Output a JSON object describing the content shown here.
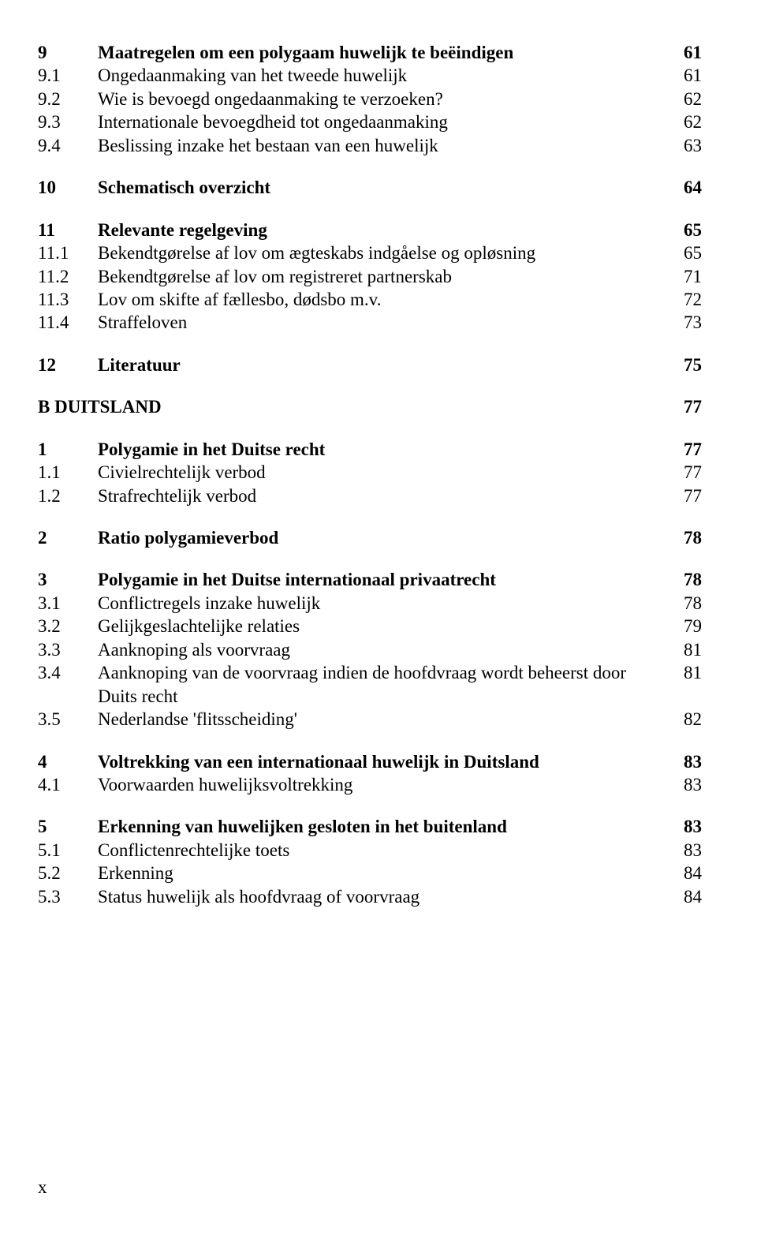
{
  "toc": {
    "items": [
      {
        "num": "9",
        "title": "Maatregelen om een polygaam huwelijk te beëindigen",
        "page": "61",
        "bold": true,
        "spaceBefore": 0
      },
      {
        "num": "9.1",
        "title": "Ongedaanmaking van het tweede huwelijk",
        "page": "61",
        "bold": false,
        "spaceBefore": 0
      },
      {
        "num": "9.2",
        "title": "Wie is bevoegd ongedaanmaking te verzoeken?",
        "page": "62",
        "bold": false,
        "spaceBefore": 0
      },
      {
        "num": "9.3",
        "title": "Internationale bevoegdheid tot ongedaanmaking",
        "page": "62",
        "bold": false,
        "spaceBefore": 0
      },
      {
        "num": "9.4",
        "title": "Beslissing inzake het bestaan van een huwelijk",
        "page": "63",
        "bold": false,
        "spaceBefore": 0
      },
      {
        "num": "10",
        "title": "Schematisch overzicht",
        "page": "64",
        "bold": true,
        "spaceBefore": 24
      },
      {
        "num": "11",
        "title": "Relevante regelgeving",
        "page": "65",
        "bold": true,
        "spaceBefore": 24
      },
      {
        "num": "11.1",
        "title": "Bekendtgørelse af lov om ægteskabs indgåelse og opløsning",
        "page": "65",
        "bold": false,
        "spaceBefore": 0
      },
      {
        "num": "11.2",
        "title": "Bekendtgørelse af lov om registreret partnerskab",
        "page": "71",
        "bold": false,
        "spaceBefore": 0
      },
      {
        "num": "11.3",
        "title": "Lov om skifte af fællesbo, dødsbo m.v.",
        "page": "72",
        "bold": false,
        "spaceBefore": 0
      },
      {
        "num": "11.4",
        "title": "Straffeloven",
        "page": "73",
        "bold": false,
        "spaceBefore": 0
      },
      {
        "num": "12",
        "title": "Literatuur",
        "page": "75",
        "bold": true,
        "spaceBefore": 24
      },
      {
        "type": "part",
        "label": "B DUITSLAND",
        "page": "77",
        "bold": true,
        "spaceBefore": 24
      },
      {
        "num": "1",
        "title": "Polygamie in het Duitse recht",
        "page": "77",
        "bold": true,
        "spaceBefore": 24
      },
      {
        "num": "1.1",
        "title": "Civielrechtelijk verbod",
        "page": "77",
        "bold": false,
        "spaceBefore": 0
      },
      {
        "num": "1.2",
        "title": "Strafrechtelijk verbod",
        "page": "77",
        "bold": false,
        "spaceBefore": 0
      },
      {
        "num": "2",
        "title": "Ratio polygamieverbod",
        "page": "78",
        "bold": true,
        "spaceBefore": 24
      },
      {
        "num": "3",
        "title": "Polygamie in het Duitse internationaal privaatrecht",
        "page": "78",
        "bold": true,
        "spaceBefore": 24
      },
      {
        "num": "3.1",
        "title": "Conflictregels inzake huwelijk",
        "page": "78",
        "bold": false,
        "spaceBefore": 0
      },
      {
        "num": "3.2",
        "title": "Gelijkgeslachtelijke relaties",
        "page": "79",
        "bold": false,
        "spaceBefore": 0
      },
      {
        "num": "3.3",
        "title": "Aanknoping als voorvraag",
        "page": "81",
        "bold": false,
        "spaceBefore": 0
      },
      {
        "num": "3.4",
        "title": "Aanknoping van de voorvraag indien de hoofdvraag wordt beheerst door Duits recht",
        "page": "81",
        "bold": false,
        "spaceBefore": 0
      },
      {
        "num": "3.5",
        "title": "Nederlandse 'flitsscheiding'",
        "page": "82",
        "bold": false,
        "spaceBefore": 0
      },
      {
        "num": "4",
        "title": "Voltrekking van een internationaal huwelijk in Duitsland",
        "page": "83",
        "bold": true,
        "spaceBefore": 24
      },
      {
        "num": "4.1",
        "title": "Voorwaarden huwelijksvoltrekking",
        "page": "83",
        "bold": false,
        "spaceBefore": 0
      },
      {
        "num": "5",
        "title": "Erkenning van huwelijken gesloten in het buitenland",
        "page": "83",
        "bold": true,
        "spaceBefore": 24
      },
      {
        "num": "5.1",
        "title": "Conflictenrechtelijke toets",
        "page": "83",
        "bold": false,
        "spaceBefore": 0
      },
      {
        "num": "5.2",
        "title": "Erkenning",
        "page": "84",
        "bold": false,
        "spaceBefore": 0
      },
      {
        "num": "5.3",
        "title": "Status huwelijk als hoofdvraag of voorvraag",
        "page": "84",
        "bold": false,
        "spaceBefore": 0
      }
    ]
  },
  "footer": {
    "pageMark": "x"
  }
}
